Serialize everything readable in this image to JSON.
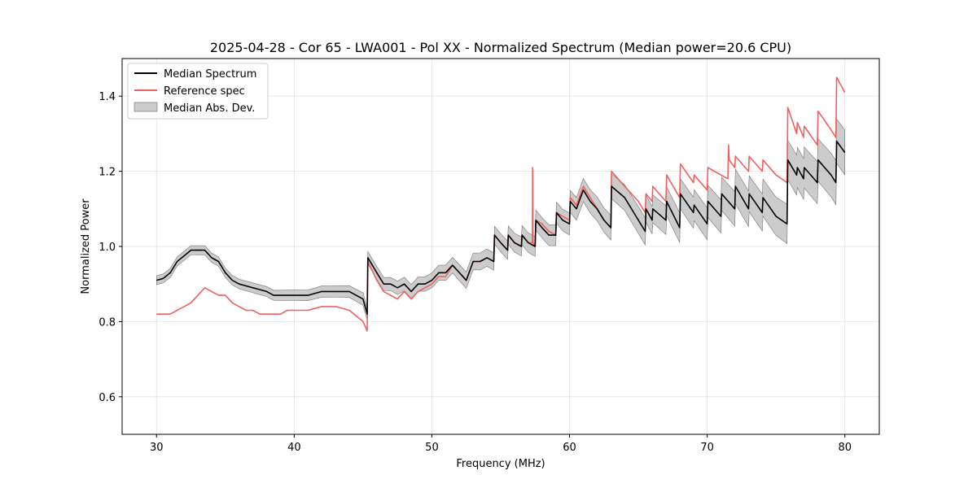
{
  "chart_data": {
    "type": "line",
    "title": "2025-04-28 - Cor 65 - LWA001 - Pol XX - Normalized Spectrum (Median power=20.6 CPU)",
    "xlabel": "Frequency (MHz)",
    "ylabel": "Normalized Power",
    "xlim": [
      27.5,
      82.5
    ],
    "ylim": [
      0.5,
      1.5
    ],
    "xticks": [
      30,
      40,
      50,
      60,
      70,
      80
    ],
    "yticks": [
      0.6,
      0.8,
      1.0,
      1.2,
      1.4
    ],
    "grid": true,
    "legend_position": "top-left",
    "colors": {
      "median": "#000000",
      "reference": "#f06060",
      "mad": "#999999"
    },
    "series": [
      {
        "name": "Median Spectrum",
        "x": [
          30,
          30.5,
          31,
          31.5,
          32,
          32.5,
          33,
          33.5,
          34,
          34.5,
          35,
          35.5,
          36,
          36.5,
          37,
          37.5,
          38,
          38.5,
          39,
          39.5,
          40,
          41,
          42,
          43,
          44,
          45,
          45.3,
          45.35,
          46,
          46.5,
          47,
          47.5,
          48,
          48.5,
          49,
          49.5,
          50,
          50.5,
          51,
          51.5,
          52,
          52.5,
          53,
          53.5,
          54,
          54.5,
          54.55,
          55,
          55.5,
          55.55,
          56,
          56.5,
          56.55,
          57,
          57.5,
          57.55,
          58,
          58.5,
          59,
          59.05,
          59.5,
          60,
          60.05,
          60.5,
          61,
          61.5,
          62,
          62.5,
          63,
          63.05,
          64,
          65,
          65.5,
          65.55,
          66,
          66.05,
          67,
          67.05,
          68,
          68.05,
          69,
          69.05,
          70,
          70.05,
          71,
          71.05,
          72,
          72.05,
          73,
          73.05,
          74,
          74.05,
          75,
          75.8,
          75.85,
          76.5,
          76.55,
          77,
          77.05,
          78,
          78.05,
          79,
          79.35,
          79.4,
          80
        ],
        "values": [
          0.91,
          0.915,
          0.93,
          0.96,
          0.975,
          0.99,
          0.99,
          0.99,
          0.97,
          0.96,
          0.93,
          0.91,
          0.9,
          0.895,
          0.89,
          0.885,
          0.88,
          0.87,
          0.87,
          0.87,
          0.87,
          0.87,
          0.88,
          0.88,
          0.88,
          0.86,
          0.82,
          0.97,
          0.93,
          0.9,
          0.9,
          0.89,
          0.9,
          0.88,
          0.9,
          0.9,
          0.91,
          0.93,
          0.93,
          0.95,
          0.93,
          0.91,
          0.96,
          0.96,
          0.97,
          0.96,
          1.03,
          1.01,
          0.99,
          1.03,
          1.01,
          1.0,
          1.03,
          1.01,
          1.0,
          1.07,
          1.05,
          1.03,
          1.03,
          1.09,
          1.07,
          1.06,
          1.12,
          1.1,
          1.15,
          1.12,
          1.1,
          1.07,
          1.05,
          1.16,
          1.13,
          1.07,
          1.04,
          1.1,
          1.07,
          1.1,
          1.07,
          1.12,
          1.05,
          1.14,
          1.09,
          1.11,
          1.06,
          1.12,
          1.08,
          1.14,
          1.1,
          1.16,
          1.1,
          1.14,
          1.09,
          1.13,
          1.08,
          1.06,
          1.23,
          1.19,
          1.21,
          1.18,
          1.21,
          1.17,
          1.23,
          1.19,
          1.17,
          1.28,
          1.25
        ]
      },
      {
        "name": "Reference spec",
        "x": [
          30,
          30.5,
          31,
          31.5,
          32,
          32.5,
          33,
          33.5,
          34,
          34.5,
          35,
          35.5,
          36,
          36.5,
          37,
          37.5,
          38,
          38.5,
          39,
          39.5,
          40,
          41,
          42,
          43,
          44,
          45,
          45.3,
          45.35,
          46,
          46.5,
          47,
          47.5,
          48,
          48.5,
          49,
          49.5,
          50,
          50.5,
          51,
          51.5,
          52,
          52.5,
          53,
          53.5,
          54,
          54.5,
          54.55,
          55,
          55.5,
          55.55,
          56,
          56.5,
          56.55,
          57,
          57.3,
          57.32,
          57.34,
          57.5,
          57.55,
          58,
          58.5,
          59,
          59.05,
          59.5,
          60,
          60.05,
          60.5,
          61,
          61.5,
          62,
          62.5,
          63,
          63.05,
          64,
          65,
          65.5,
          65.55,
          66,
          66.05,
          67,
          67.05,
          68,
          68.05,
          69,
          69.05,
          70,
          70.05,
          71,
          71.5,
          71.55,
          71.6,
          72,
          72.05,
          73,
          73.05,
          74,
          74.05,
          75,
          75.8,
          75.85,
          76.5,
          76.55,
          77,
          77.05,
          78,
          78.05,
          79,
          79.35,
          79.4,
          80
        ],
        "values": [
          0.82,
          0.82,
          0.82,
          0.83,
          0.84,
          0.85,
          0.87,
          0.89,
          0.88,
          0.87,
          0.87,
          0.85,
          0.84,
          0.83,
          0.83,
          0.82,
          0.82,
          0.82,
          0.82,
          0.83,
          0.83,
          0.83,
          0.84,
          0.84,
          0.83,
          0.8,
          0.775,
          0.96,
          0.91,
          0.88,
          0.87,
          0.86,
          0.88,
          0.86,
          0.88,
          0.89,
          0.9,
          0.92,
          0.92,
          0.95,
          0.93,
          0.91,
          0.96,
          0.96,
          0.97,
          0.96,
          1.03,
          1.01,
          0.99,
          1.03,
          1.01,
          1.0,
          1.03,
          1.01,
          1.01,
          1.21,
          1.01,
          1.0,
          1.07,
          1.06,
          1.04,
          1.03,
          1.09,
          1.08,
          1.07,
          1.13,
          1.11,
          1.16,
          1.13,
          1.1,
          1.07,
          1.05,
          1.2,
          1.16,
          1.12,
          1.09,
          1.14,
          1.12,
          1.16,
          1.12,
          1.19,
          1.13,
          1.22,
          1.17,
          1.19,
          1.15,
          1.21,
          1.19,
          1.18,
          1.27,
          1.23,
          1.21,
          1.24,
          1.2,
          1.24,
          1.2,
          1.23,
          1.19,
          1.17,
          1.37,
          1.3,
          1.33,
          1.29,
          1.32,
          1.27,
          1.36,
          1.31,
          1.29,
          1.45,
          1.41
        ]
      }
    ],
    "band": {
      "name": "Median Abs. Dev.",
      "halfwidth_start": 0.012,
      "halfwidth_end": 0.06
    }
  }
}
